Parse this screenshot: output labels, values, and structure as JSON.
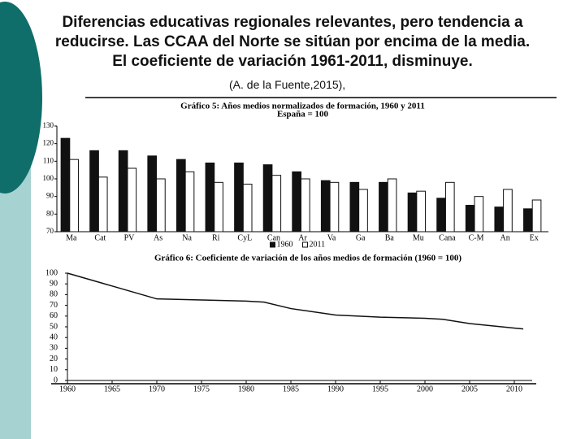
{
  "title_lines": [
    "Diferencias educativas regionales relevantes, pero tendencia a",
    "reducirse. Las CCAA del Norte se sitúan por encima de la media.",
    "El coeficiente de variación 1961-2011, disminuye."
  ],
  "source": "(A. de la Fuente,2015),",
  "chart_data": [
    {
      "type": "bar",
      "title": "Gráfico 5: Años medios normalizados de formación, 1960 y 2011",
      "subtitle": "España = 100",
      "categories": [
        "Ma",
        "Cat",
        "PV",
        "As",
        "Na",
        "Ri",
        "CyL",
        "Can",
        "Ar",
        "Va",
        "Ga",
        "Ba",
        "Mu",
        "Cana",
        "C-M",
        "An",
        "Ex"
      ],
      "series": [
        {
          "name": "1960",
          "color": "#111111",
          "values": [
            123,
            116,
            116,
            113,
            111,
            109,
            109,
            108,
            104,
            99,
            98,
            98,
            92,
            89,
            85,
            84,
            83
          ]
        },
        {
          "name": "2011",
          "color": "#ffffff",
          "values": [
            111,
            101,
            106,
            100,
            104,
            98,
            97,
            102,
            100,
            98,
            94,
            100,
            93,
            98,
            90,
            94,
            88
          ]
        }
      ],
      "ylim": [
        70,
        130
      ],
      "yticks": [
        70,
        80,
        90,
        100,
        110,
        120,
        130
      ],
      "grid": false,
      "legend": "bottom"
    },
    {
      "type": "line",
      "title": "Gráfico 6: Coeficiente de variación de los años medios de formación (1960 = 100)",
      "x": [
        1960,
        1965,
        1970,
        1975,
        1980,
        1982,
        1985,
        1990,
        1995,
        2000,
        2002,
        2005,
        2011
      ],
      "series": [
        {
          "name": "Coeficiente de variación",
          "color": "#111111",
          "values": [
            100,
            88,
            76,
            75,
            74,
            73,
            67,
            61,
            59,
            58,
            57,
            53,
            48
          ]
        }
      ],
      "xlim": [
        1960,
        2012
      ],
      "xticks": [
        1960,
        1965,
        1970,
        1975,
        1980,
        1985,
        1990,
        1995,
        2000,
        2005,
        2010
      ],
      "ylim": [
        0,
        100
      ],
      "yticks": [
        0,
        10,
        20,
        30,
        40,
        50,
        60,
        70,
        80,
        90,
        100
      ],
      "grid": false
    }
  ]
}
